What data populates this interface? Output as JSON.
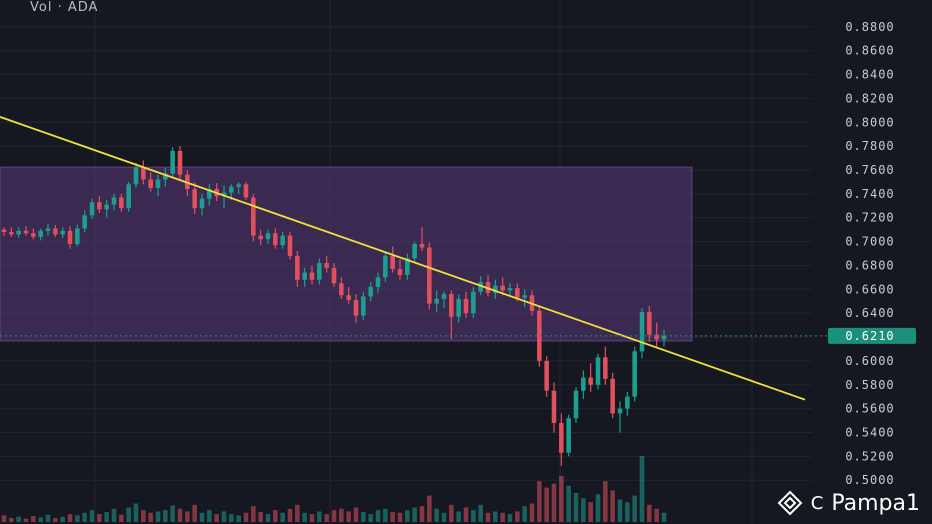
{
  "header": {
    "volume_label": "Vol · ADA"
  },
  "watermark": {
    "author": "Pampa1",
    "prefix": "C"
  },
  "colors": {
    "up": "#1e9e8e",
    "down": "#e0505f",
    "trendline": "#f2e03a",
    "zone": "#5a3a7a",
    "price_badge": "#1a8f7a",
    "axis_text": "#c8ccd6"
  },
  "chart_data": {
    "type": "candlestick",
    "title": "",
    "symbol": "ADA",
    "y_axis": {
      "ticks": [
        "0.8800",
        "0.8600",
        "0.8400",
        "0.8200",
        "0.8000",
        "0.7800",
        "0.7600",
        "0.7400",
        "0.7200",
        "0.7000",
        "0.6800",
        "0.6600",
        "0.6400",
        "0.6200",
        "0.6000",
        "0.5800",
        "0.5600",
        "0.5400",
        "0.5200",
        "0.5000"
      ],
      "range": [
        0.4985,
        0.8832
      ],
      "position": "right"
    },
    "current_price": "0.6210",
    "zone": {
      "top": 0.7624,
      "bottom": 0.6167
    },
    "trendline": {
      "start_price": 0.8045,
      "end_price": 0.5675
    },
    "grid": true,
    "candles": [
      [
        0.71,
        0.712,
        0.705,
        0.708
      ],
      [
        0.708,
        0.712,
        0.704,
        0.706
      ],
      [
        0.706,
        0.712,
        0.703,
        0.709
      ],
      [
        0.709,
        0.713,
        0.705,
        0.707
      ],
      [
        0.707,
        0.711,
        0.702,
        0.704
      ],
      [
        0.704,
        0.711,
        0.701,
        0.709
      ],
      [
        0.709,
        0.715,
        0.705,
        0.711
      ],
      [
        0.711,
        0.714,
        0.704,
        0.706
      ],
      [
        0.706,
        0.712,
        0.703,
        0.709
      ],
      [
        0.709,
        0.713,
        0.694,
        0.698
      ],
      [
        0.698,
        0.714,
        0.696,
        0.711
      ],
      [
        0.711,
        0.726,
        0.708,
        0.722
      ],
      [
        0.722,
        0.736,
        0.719,
        0.733
      ],
      [
        0.733,
        0.738,
        0.724,
        0.727
      ],
      [
        0.727,
        0.735,
        0.72,
        0.731
      ],
      [
        0.731,
        0.74,
        0.726,
        0.737
      ],
      [
        0.737,
        0.74,
        0.725,
        0.728
      ],
      [
        0.728,
        0.75,
        0.725,
        0.748
      ],
      [
        0.748,
        0.766,
        0.745,
        0.762
      ],
      [
        0.762,
        0.768,
        0.748,
        0.752
      ],
      [
        0.752,
        0.758,
        0.742,
        0.745
      ],
      [
        0.745,
        0.756,
        0.738,
        0.752
      ],
      [
        0.752,
        0.762,
        0.746,
        0.757
      ],
      [
        0.757,
        0.779,
        0.754,
        0.776
      ],
      [
        0.776,
        0.78,
        0.752,
        0.756
      ],
      [
        0.756,
        0.76,
        0.738,
        0.744
      ],
      [
        0.744,
        0.75,
        0.723,
        0.728
      ],
      [
        0.728,
        0.74,
        0.722,
        0.736
      ],
      [
        0.736,
        0.748,
        0.73,
        0.744
      ],
      [
        0.744,
        0.749,
        0.734,
        0.738
      ],
      [
        0.738,
        0.747,
        0.728,
        0.741
      ],
      [
        0.741,
        0.748,
        0.735,
        0.746
      ],
      [
        0.746,
        0.75,
        0.74,
        0.748
      ],
      [
        0.748,
        0.75,
        0.735,
        0.737
      ],
      [
        0.737,
        0.74,
        0.7,
        0.705
      ],
      [
        0.705,
        0.71,
        0.697,
        0.702
      ],
      [
        0.702,
        0.71,
        0.698,
        0.707
      ],
      [
        0.707,
        0.711,
        0.694,
        0.697
      ],
      [
        0.697,
        0.708,
        0.694,
        0.705
      ],
      [
        0.705,
        0.708,
        0.685,
        0.688
      ],
      [
        0.688,
        0.692,
        0.662,
        0.668
      ],
      [
        0.668,
        0.678,
        0.662,
        0.674
      ],
      [
        0.674,
        0.68,
        0.664,
        0.668
      ],
      [
        0.668,
        0.686,
        0.664,
        0.682
      ],
      [
        0.682,
        0.688,
        0.674,
        0.678
      ],
      [
        0.678,
        0.682,
        0.662,
        0.665
      ],
      [
        0.665,
        0.67,
        0.652,
        0.655
      ],
      [
        0.655,
        0.662,
        0.648,
        0.651
      ],
      [
        0.651,
        0.656,
        0.632,
        0.638
      ],
      [
        0.638,
        0.658,
        0.634,
        0.654
      ],
      [
        0.654,
        0.666,
        0.65,
        0.662
      ],
      [
        0.662,
        0.674,
        0.657,
        0.67
      ],
      [
        0.67,
        0.692,
        0.666,
        0.688
      ],
      [
        0.688,
        0.696,
        0.674,
        0.677
      ],
      [
        0.677,
        0.685,
        0.668,
        0.672
      ],
      [
        0.672,
        0.69,
        0.668,
        0.686
      ],
      [
        0.686,
        0.7,
        0.682,
        0.698
      ],
      [
        0.698,
        0.712,
        0.692,
        0.695
      ],
      [
        0.695,
        0.699,
        0.643,
        0.648
      ],
      [
        0.648,
        0.659,
        0.641,
        0.652
      ],
      [
        0.652,
        0.658,
        0.644,
        0.656
      ],
      [
        0.656,
        0.659,
        0.618,
        0.637
      ],
      [
        0.637,
        0.656,
        0.632,
        0.652
      ],
      [
        0.652,
        0.658,
        0.636,
        0.64
      ],
      [
        0.64,
        0.662,
        0.636,
        0.658
      ],
      [
        0.658,
        0.671,
        0.655,
        0.666
      ],
      [
        0.666,
        0.672,
        0.654,
        0.657
      ],
      [
        0.657,
        0.668,
        0.652,
        0.663
      ],
      [
        0.663,
        0.67,
        0.655,
        0.659
      ],
      [
        0.659,
        0.665,
        0.654,
        0.661
      ],
      [
        0.661,
        0.665,
        0.65,
        0.653
      ],
      [
        0.653,
        0.66,
        0.645,
        0.655
      ],
      [
        0.655,
        0.659,
        0.638,
        0.642
      ],
      [
        0.642,
        0.646,
        0.595,
        0.6
      ],
      [
        0.6,
        0.604,
        0.57,
        0.575
      ],
      [
        0.575,
        0.582,
        0.54,
        0.548
      ],
      [
        0.548,
        0.556,
        0.512,
        0.523
      ],
      [
        0.523,
        0.555,
        0.52,
        0.552
      ],
      [
        0.552,
        0.578,
        0.548,
        0.575
      ],
      [
        0.575,
        0.592,
        0.568,
        0.586
      ],
      [
        0.586,
        0.598,
        0.574,
        0.58
      ],
      [
        0.58,
        0.606,
        0.576,
        0.603
      ],
      [
        0.603,
        0.612,
        0.58,
        0.585
      ],
      [
        0.585,
        0.59,
        0.552,
        0.556
      ],
      [
        0.556,
        0.566,
        0.54,
        0.56
      ],
      [
        0.56,
        0.574,
        0.554,
        0.57
      ],
      [
        0.57,
        0.612,
        0.566,
        0.608
      ],
      [
        0.608,
        0.644,
        0.602,
        0.641
      ],
      [
        0.641,
        0.646,
        0.616,
        0.622
      ],
      [
        0.622,
        0.632,
        0.612,
        0.618
      ],
      [
        0.618,
        0.626,
        0.612,
        0.621
      ]
    ],
    "volume": [
      0.1,
      0.06,
      0.08,
      0.05,
      0.09,
      0.07,
      0.11,
      0.06,
      0.08,
      0.12,
      0.1,
      0.14,
      0.18,
      0.12,
      0.15,
      0.2,
      0.11,
      0.22,
      0.28,
      0.18,
      0.14,
      0.16,
      0.18,
      0.25,
      0.2,
      0.16,
      0.26,
      0.14,
      0.18,
      0.12,
      0.16,
      0.12,
      0.1,
      0.14,
      0.24,
      0.15,
      0.12,
      0.18,
      0.14,
      0.2,
      0.26,
      0.14,
      0.12,
      0.16,
      0.12,
      0.18,
      0.2,
      0.16,
      0.22,
      0.15,
      0.12,
      0.18,
      0.2,
      0.15,
      0.14,
      0.18,
      0.22,
      0.24,
      0.4,
      0.2,
      0.14,
      0.26,
      0.16,
      0.22,
      0.18,
      0.26,
      0.14,
      0.16,
      0.14,
      0.12,
      0.16,
      0.24,
      0.28,
      0.62,
      0.52,
      0.58,
      0.7,
      0.55,
      0.44,
      0.36,
      0.3,
      0.42,
      0.62,
      0.48,
      0.34,
      0.3,
      0.4,
      1.0,
      0.26,
      0.2,
      0.14
    ]
  }
}
